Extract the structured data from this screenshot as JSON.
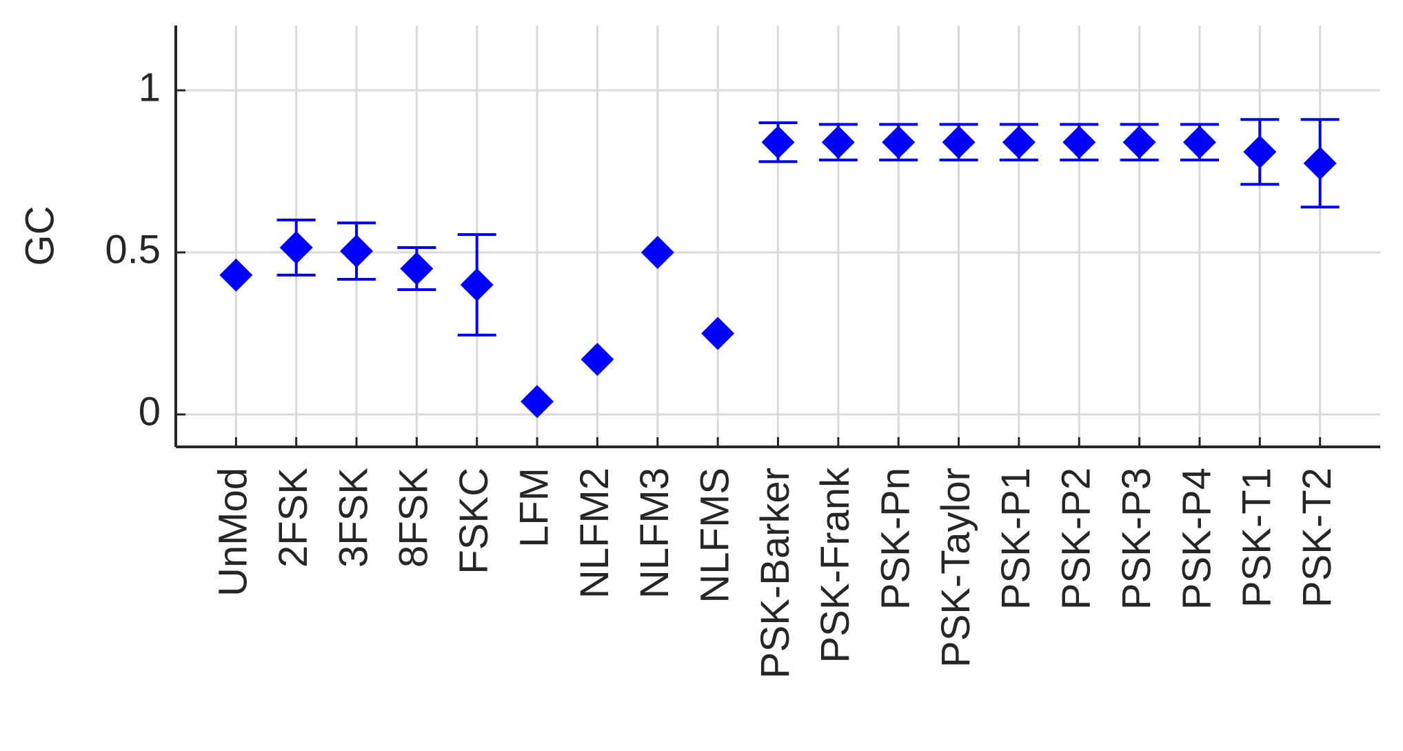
{
  "chart_data": {
    "type": "errorbar",
    "ylabel": "GC",
    "categories": [
      "UnMod",
      "2FSK",
      "3FSK",
      "8FSK",
      "FSKC",
      "LFM",
      "NLFM2",
      "NLFM3",
      "NLFMS",
      "PSK-Barker",
      "PSK-Frank",
      "PSK-Pn",
      "PSK-Taylor",
      "PSK-P1",
      "PSK-P2",
      "PSK-P3",
      "PSK-P4",
      "PSK-T1",
      "PSK-T2"
    ],
    "values": [
      0.43,
      0.515,
      0.504,
      0.45,
      0.4,
      0.04,
      0.17,
      0.5,
      0.25,
      0.84,
      0.84,
      0.84,
      0.84,
      0.84,
      0.84,
      0.84,
      0.84,
      0.81,
      0.775
    ],
    "errors": [
      null,
      0.085,
      0.087,
      0.065,
      0.155,
      null,
      null,
      null,
      null,
      0.06,
      0.055,
      0.055,
      0.055,
      0.055,
      0.055,
      0.055,
      0.055,
      0.1,
      0.135
    ],
    "color": "#0000ff",
    "ylim": [
      -0.1,
      1.2
    ],
    "yticks": [
      0,
      0.5,
      1
    ],
    "grid": true
  }
}
